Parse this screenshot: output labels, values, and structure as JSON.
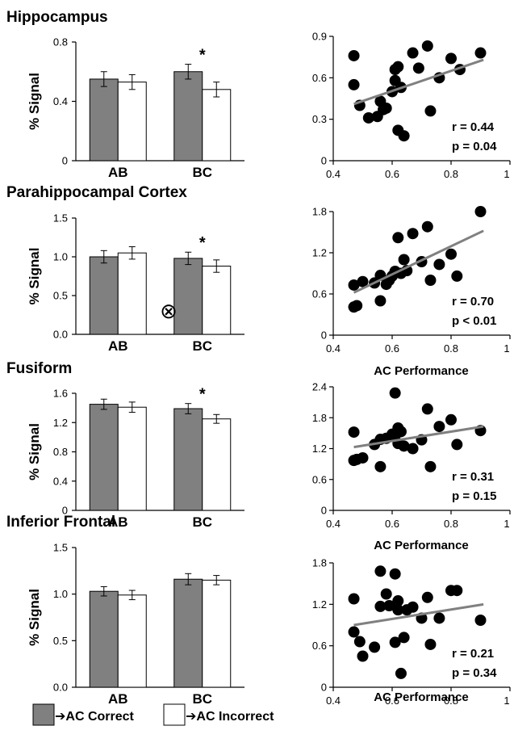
{
  "legend": {
    "correct": "➔AC Correct",
    "incorrect": "➔AC Incorrect",
    "correct_color": "#808080",
    "incorrect_color": "#ffffff"
  },
  "bar_ylabel": "% Signal",
  "scatter_xlabel": "AC Performance",
  "symbols": {
    "excluded": "⊗",
    "significant": "*"
  },
  "chart_data": [
    {
      "type": "bar",
      "title": "Hippocampus",
      "categories": [
        "AB",
        "BC"
      ],
      "ylabel": "% Signal",
      "ylim": [
        0,
        0.8
      ],
      "yticks": [
        "0",
        "0.4",
        "0.8"
      ],
      "series": [
        {
          "name": "AC Correct",
          "values": [
            0.55,
            0.6
          ],
          "errors": [
            0.05,
            0.05
          ]
        },
        {
          "name": "AC Incorrect",
          "values": [
            0.53,
            0.48
          ],
          "errors": [
            0.05,
            0.05
          ]
        }
      ],
      "significant": [
        false,
        true
      ]
    },
    {
      "type": "scatter",
      "xlabel": "",
      "xlim": [
        0.4,
        1
      ],
      "xticks": [
        "0.4",
        "0.6",
        "0.8",
        "1"
      ],
      "ylim": [
        0,
        0.9
      ],
      "yticks": [
        "0",
        "0.3",
        "0.6",
        "0.9"
      ],
      "points": [
        [
          0.47,
          0.76
        ],
        [
          0.47,
          0.55
        ],
        [
          0.49,
          0.4
        ],
        [
          0.52,
          0.31
        ],
        [
          0.55,
          0.32
        ],
        [
          0.56,
          0.43
        ],
        [
          0.57,
          0.37
        ],
        [
          0.58,
          0.38
        ],
        [
          0.6,
          0.5
        ],
        [
          0.61,
          0.66
        ],
        [
          0.61,
          0.58
        ],
        [
          0.62,
          0.68
        ],
        [
          0.62,
          0.22
        ],
        [
          0.63,
          0.53
        ],
        [
          0.64,
          0.18
        ],
        [
          0.67,
          0.78
        ],
        [
          0.69,
          0.67
        ],
        [
          0.72,
          0.83
        ],
        [
          0.73,
          0.36
        ],
        [
          0.76,
          0.6
        ],
        [
          0.8,
          0.74
        ],
        [
          0.83,
          0.66
        ],
        [
          0.9,
          0.78
        ]
      ],
      "fit": [
        [
          0.47,
          0.41
        ],
        [
          0.91,
          0.73
        ]
      ],
      "stats": [
        "r = 0.44",
        "p = 0.04"
      ]
    },
    {
      "type": "bar",
      "title": "Parahippocampal Cortex",
      "categories": [
        "AB",
        "BC"
      ],
      "ylabel": "% Signal",
      "ylim": [
        0,
        1.5
      ],
      "yticks": [
        "0.0",
        "0.5",
        "1.0",
        "1.5"
      ],
      "series": [
        {
          "name": "AC Correct",
          "values": [
            1.0,
            0.98
          ],
          "errors": [
            0.08,
            0.08
          ]
        },
        {
          "name": "AC Incorrect",
          "values": [
            1.05,
            0.88
          ],
          "errors": [
            0.08,
            0.08
          ]
        }
      ],
      "significant": [
        false,
        true
      ]
    },
    {
      "type": "scatter",
      "xlabel": "AC Performance",
      "xlim": [
        0.4,
        1
      ],
      "xticks": [
        "0.4",
        "0.6",
        "0.8",
        "1"
      ],
      "ylim": [
        0,
        1.8
      ],
      "yticks": [
        "0",
        "0.6",
        "1.2",
        "1.8"
      ],
      "points": [
        [
          0.47,
          0.73
        ],
        [
          0.47,
          0.41
        ],
        [
          0.48,
          0.43
        ],
        [
          0.5,
          0.78
        ],
        [
          0.54,
          0.76
        ],
        [
          0.56,
          0.87
        ],
        [
          0.56,
          0.5
        ],
        [
          0.58,
          0.74
        ],
        [
          0.59,
          0.8
        ],
        [
          0.6,
          0.86
        ],
        [
          0.61,
          0.93
        ],
        [
          0.62,
          1.42
        ],
        [
          0.63,
          0.9
        ],
        [
          0.64,
          1.1
        ],
        [
          0.65,
          0.94
        ],
        [
          0.67,
          1.48
        ],
        [
          0.7,
          1.07
        ],
        [
          0.72,
          1.58
        ],
        [
          0.73,
          0.8
        ],
        [
          0.76,
          1.03
        ],
        [
          0.8,
          1.18
        ],
        [
          0.82,
          0.86
        ],
        [
          0.9,
          1.8
        ]
      ],
      "fit": [
        [
          0.47,
          0.62
        ],
        [
          0.91,
          1.52
        ]
      ],
      "stats": [
        "r  = 0.70",
        "p < 0.01"
      ]
    },
    {
      "type": "bar",
      "title": "Fusiform",
      "categories": [
        "AB",
        "BC"
      ],
      "ylabel": "% Signal",
      "ylim": [
        0,
        1.6
      ],
      "yticks": [
        "0",
        "0.4",
        "0.8",
        "1.2",
        "1.6"
      ],
      "series": [
        {
          "name": "AC Correct",
          "values": [
            1.45,
            1.39
          ],
          "errors": [
            0.07,
            0.07
          ]
        },
        {
          "name": "AC Incorrect",
          "values": [
            1.41,
            1.25
          ],
          "errors": [
            0.07,
            0.06
          ]
        }
      ],
      "significant": [
        false,
        true
      ]
    },
    {
      "type": "scatter",
      "xlabel": "AC Performance",
      "xlim": [
        0.4,
        1
      ],
      "xticks": [
        "0.4",
        "0.6",
        "0.8",
        "1"
      ],
      "ylim": [
        0,
        2.4
      ],
      "yticks": [
        "0",
        "0.6",
        "1.2",
        "1.8",
        "2.4"
      ],
      "points": [
        [
          0.47,
          1.52
        ],
        [
          0.47,
          0.97
        ],
        [
          0.48,
          0.99
        ],
        [
          0.5,
          1.02
        ],
        [
          0.54,
          1.28
        ],
        [
          0.56,
          1.38
        ],
        [
          0.56,
          0.85
        ],
        [
          0.58,
          1.4
        ],
        [
          0.6,
          1.48
        ],
        [
          0.61,
          2.28
        ],
        [
          0.61,
          1.45
        ],
        [
          0.62,
          1.6
        ],
        [
          0.62,
          1.3
        ],
        [
          0.63,
          1.53
        ],
        [
          0.64,
          1.25
        ],
        [
          0.67,
          1.2
        ],
        [
          0.7,
          1.37
        ],
        [
          0.72,
          1.97
        ],
        [
          0.73,
          0.85
        ],
        [
          0.76,
          1.63
        ],
        [
          0.8,
          1.76
        ],
        [
          0.82,
          1.28
        ],
        [
          0.9,
          1.55
        ]
      ],
      "fit": [
        [
          0.47,
          1.23
        ],
        [
          0.91,
          1.63
        ]
      ],
      "stats": [
        "r  = 0.31",
        "p = 0.15"
      ]
    },
    {
      "type": "bar",
      "title": "Inferior Frontal",
      "categories": [
        "AB",
        "BC"
      ],
      "ylabel": "% Signal",
      "ylim": [
        0,
        1.5
      ],
      "yticks": [
        "0.0",
        "0.5",
        "1.0",
        "1.5"
      ],
      "series": [
        {
          "name": "AC Correct",
          "values": [
            1.03,
            1.16
          ],
          "errors": [
            0.05,
            0.06
          ]
        },
        {
          "name": "AC Incorrect",
          "values": [
            0.99,
            1.15
          ],
          "errors": [
            0.05,
            0.05
          ]
        }
      ],
      "significant": [
        false,
        false
      ]
    },
    {
      "type": "scatter",
      "xlabel": "AC Performance",
      "xlim": [
        0.4,
        1
      ],
      "xticks": [
        "0.4",
        "0.6",
        "0.8",
        "1"
      ],
      "ylim": [
        0,
        1.8
      ],
      "yticks": [
        "0",
        "0.6",
        "1.2",
        "1.8"
      ],
      "points": [
        [
          0.47,
          1.28
        ],
        [
          0.47,
          0.8
        ],
        [
          0.49,
          0.66
        ],
        [
          0.5,
          0.45
        ],
        [
          0.54,
          0.58
        ],
        [
          0.56,
          1.17
        ],
        [
          0.56,
          1.68
        ],
        [
          0.58,
          1.35
        ],
        [
          0.59,
          1.18
        ],
        [
          0.61,
          1.64
        ],
        [
          0.61,
          0.65
        ],
        [
          0.62,
          1.25
        ],
        [
          0.62,
          1.12
        ],
        [
          0.63,
          0.2
        ],
        [
          0.64,
          0.72
        ],
        [
          0.65,
          1.12
        ],
        [
          0.67,
          1.16
        ],
        [
          0.7,
          1.0
        ],
        [
          0.72,
          1.3
        ],
        [
          0.73,
          0.62
        ],
        [
          0.76,
          1.0
        ],
        [
          0.8,
          1.4
        ],
        [
          0.82,
          1.4
        ],
        [
          0.9,
          0.97
        ]
      ],
      "fit": [
        [
          0.47,
          0.9
        ],
        [
          0.91,
          1.2
        ]
      ],
      "stats": [
        "r  = 0.21",
        "p = 0.34"
      ]
    }
  ]
}
